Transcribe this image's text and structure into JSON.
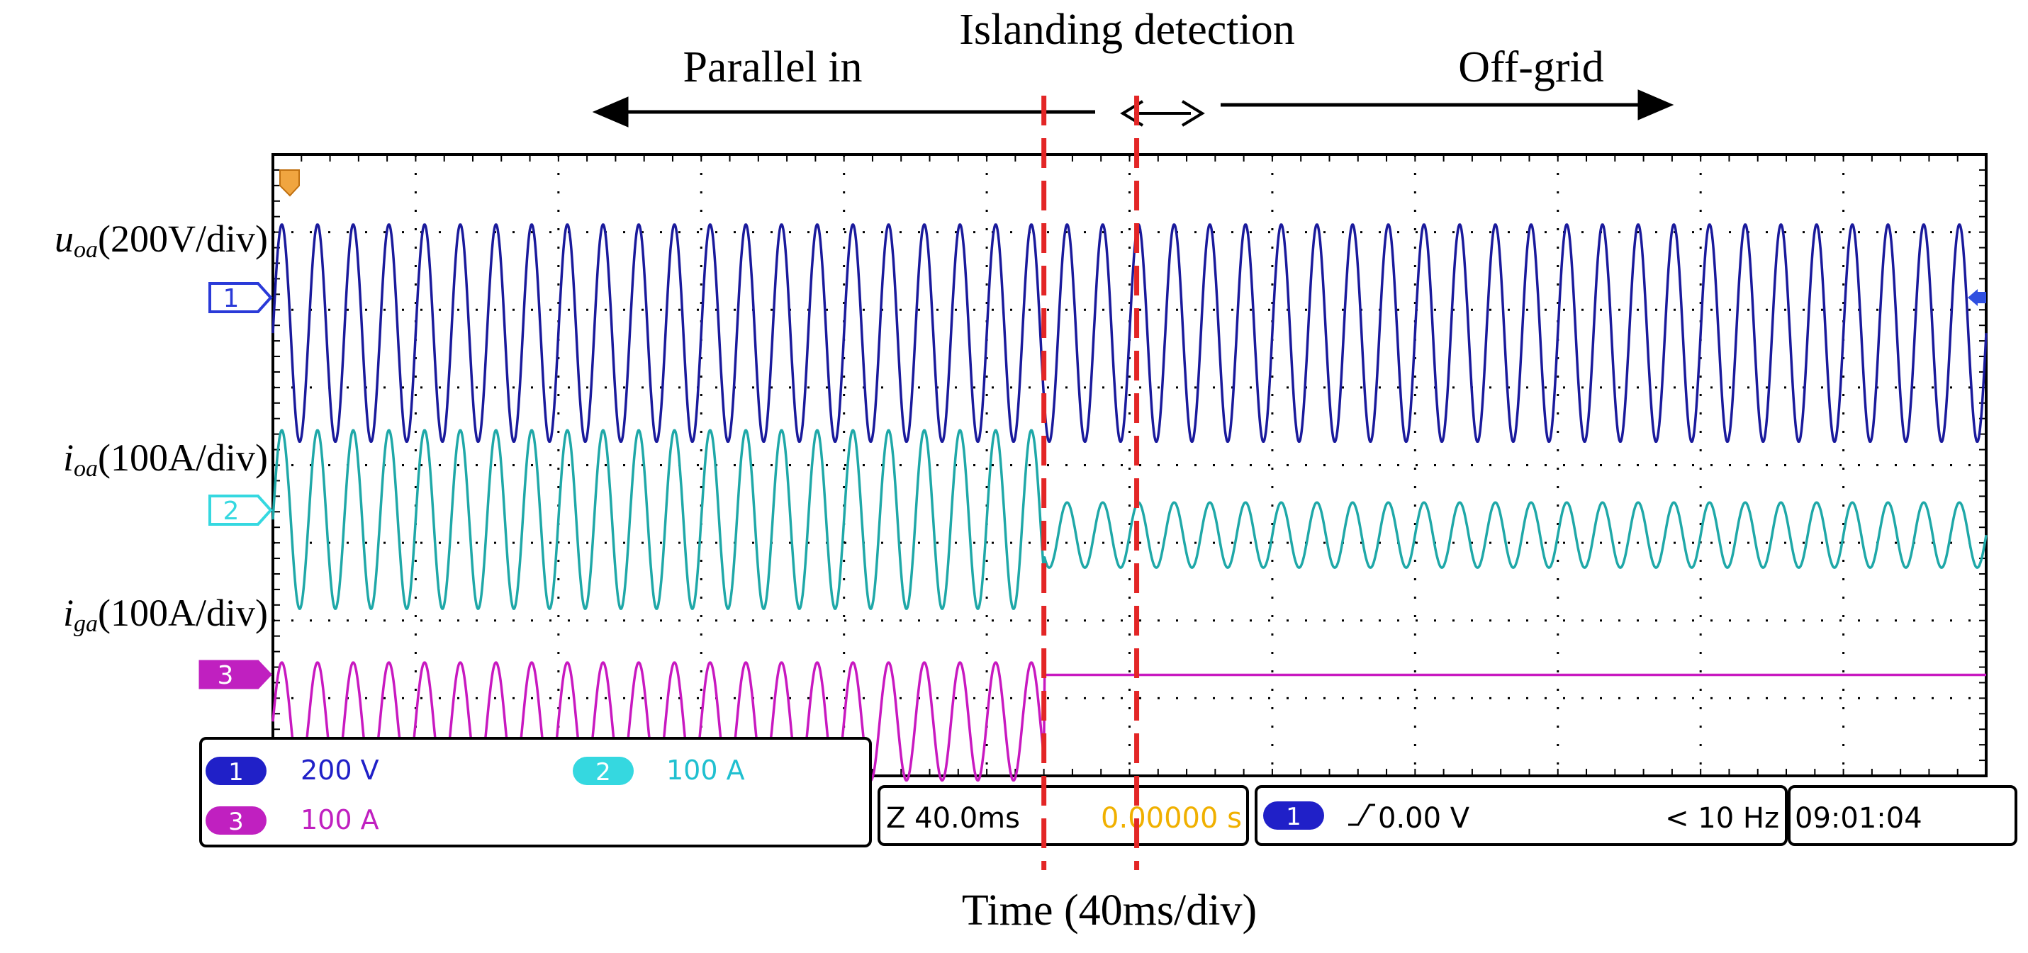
{
  "chart_data": {
    "type": "line",
    "title": "",
    "xlabel": "Time (40ms/div)",
    "x_unit": "ms",
    "x_per_div": 40,
    "xlim": [
      -440,
      520
    ],
    "grid": true,
    "divisions": {
      "x": 12,
      "y": 8
    },
    "annotations": {
      "parallel": "Parallel in",
      "islanding": "Islanding detection",
      "offgrid": "Off-grid",
      "event_start_ms": -8,
      "event_end_ms": 44
    },
    "series": [
      {
        "name": "u_oa",
        "label_main": "u",
        "label_sub": "oa",
        "label_scale": "(200V/div)",
        "channel": "1",
        "color": "#1a1a9c",
        "frequency_hz": 50,
        "before": {
          "offset_div": 1.7,
          "amplitude_div": 1.4
        },
        "after": {
          "offset_div": 1.7,
          "amplitude_div": 1.4
        }
      },
      {
        "name": "i_oa",
        "label_main": "i",
        "label_sub": "oa",
        "label_scale": "(100A/div)",
        "channel": "2",
        "color": "#1fa8a8",
        "frequency_hz": 50,
        "before": {
          "offset_div": -0.7,
          "amplitude_div": 1.15
        },
        "after": {
          "offset_div": -0.9,
          "amplitude_div": 0.42
        }
      },
      {
        "name": "i_ga",
        "label_main": "i",
        "label_sub": "ga",
        "label_scale": "(100A/div)",
        "channel": "3",
        "color": "#c819c0",
        "frequency_hz": 50,
        "before": {
          "offset_div": -3.3,
          "amplitude_div": 0.76
        },
        "after": {
          "offset_div": -2.7,
          "amplitude_div": 0
        }
      }
    ]
  },
  "readout": {
    "ch1": {
      "num": "1",
      "value": "200 V",
      "color": "#2020c8"
    },
    "ch2": {
      "num": "2",
      "value": "100 A",
      "color": "#35d8e0"
    },
    "ch3": {
      "num": "3",
      "value": "100 A",
      "color": "#c020c0"
    },
    "timebase": "Z 40.0ms",
    "delay": "0.00000 s",
    "delay_color": "#f0b000",
    "trigger_channel": "1",
    "trigger_level": "0.00 V",
    "trigger_freq": "< 10 Hz",
    "clock": "09:01:04"
  },
  "colors": {
    "marker": "#e32626",
    "grid": "#000000"
  }
}
